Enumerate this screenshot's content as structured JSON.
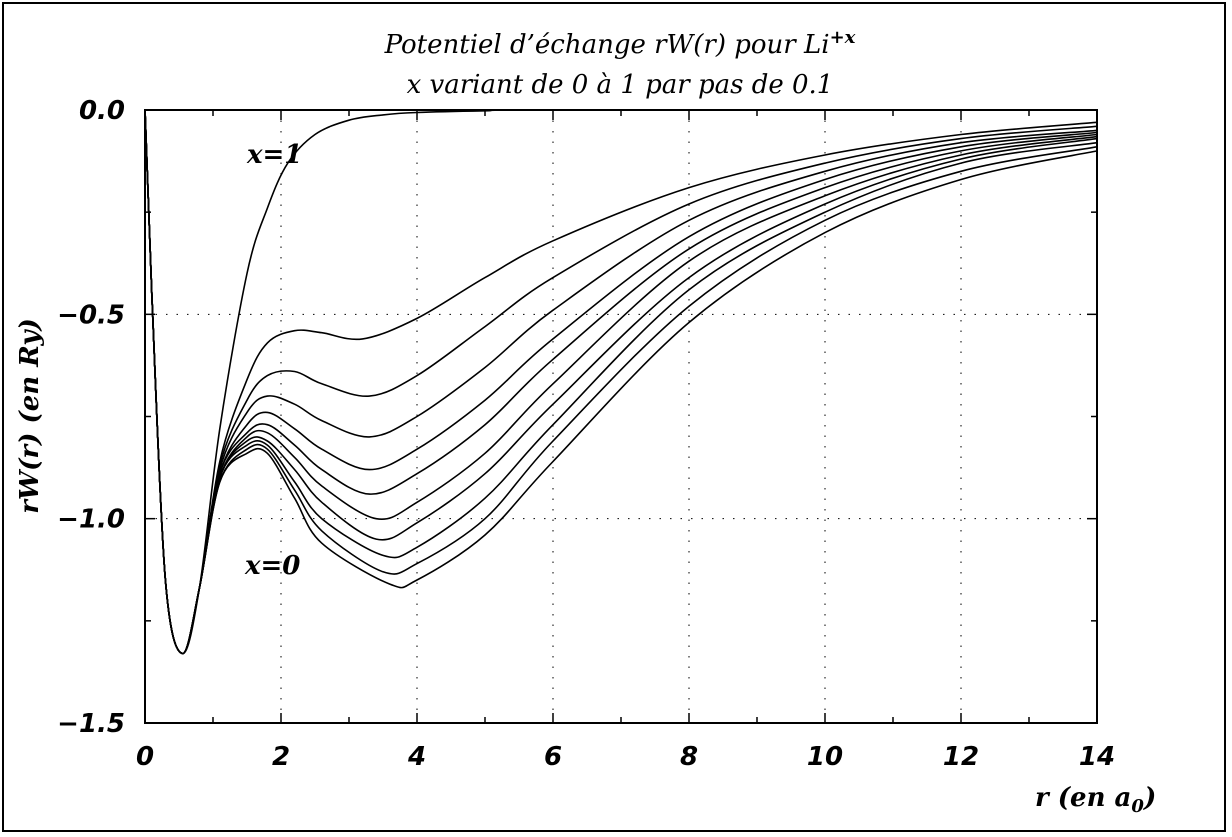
{
  "chart_data": {
    "type": "line",
    "title_line1": "Potentiel d’échange rW(r) pour Li",
    "title_sup": "+x",
    "title_line2": "x variant de 0 à 1 par pas de 0.1",
    "xlabel_main": "r (en a",
    "xlabel_sub": "0",
    "xlabel_close": ")",
    "ylabel": "rW(r) (en Ry)",
    "xlim": [
      0,
      14
    ],
    "ylim": [
      -1.5,
      0.0
    ],
    "xticks": [
      "0",
      "2",
      "4",
      "6",
      "8",
      "10",
      "12",
      "14"
    ],
    "yticks": [
      "0.0",
      "−0.5",
      "−1.0",
      "−1.5"
    ],
    "grid": true,
    "annotations": [
      "x=1",
      "x=0"
    ],
    "series": [
      {
        "x": [
          0,
          0.1,
          0.3,
          0.55,
          0.8,
          1.1,
          1.5,
          1.8,
          2.1,
          2.5,
          3,
          3.5,
          4,
          5,
          6,
          14
        ],
        "y": [
          0,
          -0.45,
          -1.15,
          -1.33,
          -1.17,
          -0.78,
          -0.4,
          -0.24,
          -0.13,
          -0.06,
          -0.025,
          -0.012,
          -0.006,
          -0.002,
          0,
          0
        ]
      },
      {
        "x": [
          0,
          0.1,
          0.3,
          0.55,
          0.8,
          1.1,
          1.5,
          1.8,
          2.2,
          2.6,
          3.2,
          4,
          5,
          6,
          8,
          10,
          12,
          14
        ],
        "y": [
          0,
          -0.45,
          -1.15,
          -1.33,
          -1.17,
          -0.86,
          -0.66,
          -0.57,
          -0.54,
          -0.545,
          -0.56,
          -0.51,
          -0.41,
          -0.32,
          -0.19,
          -0.11,
          -0.06,
          -0.03
        ]
      },
      {
        "x": [
          0,
          0.1,
          0.3,
          0.55,
          0.8,
          1.1,
          1.5,
          1.8,
          2.2,
          2.6,
          3.3,
          4,
          5,
          6,
          8,
          10,
          12,
          14
        ],
        "y": [
          0,
          -0.45,
          -1.15,
          -1.33,
          -1.17,
          -0.87,
          -0.71,
          -0.65,
          -0.64,
          -0.67,
          -0.7,
          -0.65,
          -0.53,
          -0.41,
          -0.23,
          -0.13,
          -0.07,
          -0.04
        ]
      },
      {
        "x": [
          0,
          0.1,
          0.3,
          0.55,
          0.8,
          1.1,
          1.5,
          1.8,
          2.2,
          2.6,
          3.3,
          4,
          5,
          6,
          8,
          10,
          12,
          14
        ],
        "y": [
          0,
          -0.45,
          -1.15,
          -1.33,
          -1.17,
          -0.88,
          -0.74,
          -0.7,
          -0.72,
          -0.76,
          -0.8,
          -0.75,
          -0.63,
          -0.49,
          -0.27,
          -0.15,
          -0.08,
          -0.05
        ]
      },
      {
        "x": [
          0,
          0.1,
          0.3,
          0.55,
          0.8,
          1.1,
          1.5,
          1.8,
          2.2,
          2.6,
          3.3,
          4,
          5,
          6,
          8,
          10,
          12,
          14
        ],
        "y": [
          0,
          -0.45,
          -1.15,
          -1.33,
          -1.17,
          -0.89,
          -0.77,
          -0.74,
          -0.78,
          -0.83,
          -0.88,
          -0.83,
          -0.71,
          -0.56,
          -0.31,
          -0.17,
          -0.09,
          -0.055
        ]
      },
      {
        "x": [
          0,
          0.1,
          0.3,
          0.55,
          0.8,
          1.1,
          1.5,
          1.8,
          2.2,
          2.6,
          3.3,
          4,
          5,
          6,
          8,
          10,
          12,
          14
        ],
        "y": [
          0,
          -0.45,
          -1.15,
          -1.33,
          -1.17,
          -0.89,
          -0.79,
          -0.77,
          -0.82,
          -0.88,
          -0.94,
          -0.89,
          -0.77,
          -0.61,
          -0.34,
          -0.19,
          -0.1,
          -0.06
        ]
      },
      {
        "x": [
          0,
          0.1,
          0.3,
          0.55,
          0.8,
          1.1,
          1.5,
          1.8,
          2.2,
          2.6,
          3.4,
          4,
          5,
          6,
          8,
          10,
          12,
          14
        ],
        "y": [
          0,
          -0.45,
          -1.15,
          -1.33,
          -1.17,
          -0.9,
          -0.8,
          -0.79,
          -0.85,
          -0.92,
          -1.0,
          -0.96,
          -0.84,
          -0.67,
          -0.37,
          -0.21,
          -0.11,
          -0.065
        ]
      },
      {
        "x": [
          0,
          0.1,
          0.3,
          0.55,
          0.8,
          1.1,
          1.5,
          1.8,
          2.2,
          2.6,
          3.4,
          4,
          5,
          6,
          8,
          10,
          12,
          14
        ],
        "y": [
          0,
          -0.45,
          -1.15,
          -1.33,
          -1.17,
          -0.9,
          -0.81,
          -0.81,
          -0.88,
          -0.96,
          -1.05,
          -1.01,
          -0.89,
          -0.72,
          -0.41,
          -0.23,
          -0.12,
          -0.07
        ]
      },
      {
        "x": [
          0,
          0.1,
          0.3,
          0.55,
          0.8,
          1.1,
          1.5,
          1.8,
          2.2,
          2.6,
          3.5,
          4,
          5,
          6,
          8,
          10,
          12,
          14
        ],
        "y": [
          0,
          -0.45,
          -1.15,
          -1.33,
          -1.17,
          -0.9,
          -0.82,
          -0.82,
          -0.91,
          -1.0,
          -1.09,
          -1.07,
          -0.95,
          -0.77,
          -0.44,
          -0.25,
          -0.13,
          -0.08
        ]
      },
      {
        "x": [
          0,
          0.1,
          0.3,
          0.55,
          0.8,
          1.1,
          1.5,
          1.8,
          2.2,
          2.6,
          3.5,
          4,
          5,
          6,
          8,
          10,
          12,
          14
        ],
        "y": [
          0,
          -0.45,
          -1.15,
          -1.33,
          -1.17,
          -0.91,
          -0.83,
          -0.83,
          -0.93,
          -1.03,
          -1.13,
          -1.11,
          -1.0,
          -0.81,
          -0.48,
          -0.27,
          -0.15,
          -0.09
        ]
      },
      {
        "x": [
          0,
          0.1,
          0.3,
          0.55,
          0.8,
          1.1,
          1.5,
          1.8,
          2.2,
          2.6,
          3.6,
          4,
          5,
          6,
          8,
          10,
          12,
          14
        ],
        "y": [
          0,
          -0.45,
          -1.15,
          -1.33,
          -1.17,
          -0.91,
          -0.84,
          -0.84,
          -0.95,
          -1.06,
          -1.16,
          -1.15,
          -1.04,
          -0.86,
          -0.52,
          -0.3,
          -0.17,
          -0.1
        ]
      }
    ]
  }
}
